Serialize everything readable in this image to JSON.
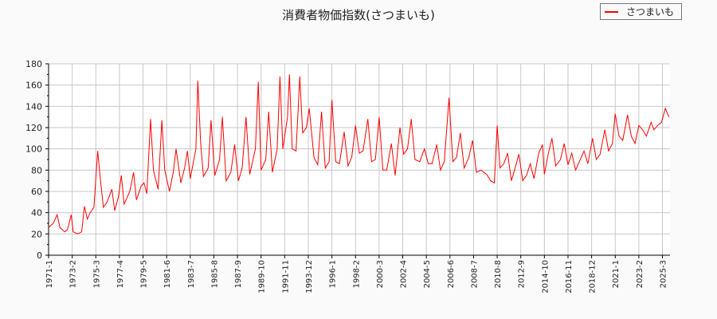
{
  "chart_data": {
    "type": "line",
    "title": "消費者物価指数(さつまいも)",
    "xlabel": "",
    "ylabel": "",
    "ylim": [
      0,
      180
    ],
    "yticks": [
      0,
      20,
      40,
      60,
      80,
      100,
      120,
      140,
      160,
      180
    ],
    "grid": true,
    "legend_position": "top-right",
    "x_tick_labels": [
      "1971-1",
      "1973-2",
      "1975-3",
      "1977-4",
      "1979-5",
      "1981-6",
      "1983-7",
      "1985-8",
      "1987-9",
      "1989-10",
      "1991-11",
      "1993-12",
      "1996-1",
      "1998-2",
      "2000-3",
      "2002-4",
      "2004-5",
      "2006-6",
      "2008-7",
      "2010-8",
      "2012-9",
      "2014-10",
      "2016-11",
      "2018-12",
      "2021-1",
      "2023-2",
      "2025-3"
    ],
    "series": [
      {
        "name": "さつまいも",
        "color": "#ff0000",
        "points": [
          [
            "1971-1",
            26
          ],
          [
            "1971-6",
            30
          ],
          [
            "1971-10",
            38
          ],
          [
            "1972-1",
            26
          ],
          [
            "1972-6",
            22
          ],
          [
            "1972-9",
            24
          ],
          [
            "1973-1",
            38
          ],
          [
            "1973-3",
            22
          ],
          [
            "1973-8",
            20
          ],
          [
            "1973-12",
            22
          ],
          [
            "1974-3",
            46
          ],
          [
            "1974-6",
            34
          ],
          [
            "1974-9",
            40
          ],
          [
            "1975-1",
            45
          ],
          [
            "1975-5",
            98
          ],
          [
            "1975-8",
            70
          ],
          [
            "1975-11",
            45
          ],
          [
            "1976-3",
            50
          ],
          [
            "1976-8",
            62
          ],
          [
            "1976-11",
            42
          ],
          [
            "1977-3",
            55
          ],
          [
            "1977-6",
            75
          ],
          [
            "1977-9",
            48
          ],
          [
            "1978-3",
            60
          ],
          [
            "1978-7",
            78
          ],
          [
            "1978-10",
            52
          ],
          [
            "1979-3",
            65
          ],
          [
            "1979-6",
            68
          ],
          [
            "1979-9",
            58
          ],
          [
            "1980-1",
            128
          ],
          [
            "1980-4",
            80
          ],
          [
            "1980-9",
            62
          ],
          [
            "1981-1",
            127
          ],
          [
            "1981-4",
            80
          ],
          [
            "1981-9",
            60
          ],
          [
            "1982-1",
            78
          ],
          [
            "1982-4",
            100
          ],
          [
            "1982-9",
            68
          ],
          [
            "1983-1",
            82
          ],
          [
            "1983-4",
            98
          ],
          [
            "1983-7",
            72
          ],
          [
            "1984-1",
            100
          ],
          [
            "1984-3",
            164
          ],
          [
            "1984-6",
            105
          ],
          [
            "1984-9",
            74
          ],
          [
            "1985-2",
            82
          ],
          [
            "1985-5",
            127
          ],
          [
            "1985-9",
            75
          ],
          [
            "1986-2",
            90
          ],
          [
            "1986-5",
            130
          ],
          [
            "1986-9",
            70
          ],
          [
            "1987-2",
            78
          ],
          [
            "1987-6",
            104
          ],
          [
            "1987-10",
            70
          ],
          [
            "1988-2",
            82
          ],
          [
            "1988-6",
            130
          ],
          [
            "1988-10",
            76
          ],
          [
            "1989-4",
            100
          ],
          [
            "1989-7",
            163
          ],
          [
            "1989-10",
            80
          ],
          [
            "1990-3",
            90
          ],
          [
            "1990-6",
            135
          ],
          [
            "1990-10",
            78
          ],
          [
            "1991-3",
            100
          ],
          [
            "1991-6",
            168
          ],
          [
            "1991-9",
            100
          ],
          [
            "1992-2",
            130
          ],
          [
            "1992-4",
            170
          ],
          [
            "1992-7",
            100
          ],
          [
            "1992-11",
            98
          ],
          [
            "1993-3",
            168
          ],
          [
            "1993-6",
            115
          ],
          [
            "1993-10",
            120
          ],
          [
            "1994-1",
            138
          ],
          [
            "1994-6",
            92
          ],
          [
            "1994-10",
            85
          ],
          [
            "1995-2",
            135
          ],
          [
            "1995-6",
            82
          ],
          [
            "1995-10",
            88
          ],
          [
            "1996-1",
            146
          ],
          [
            "1996-5",
            88
          ],
          [
            "1996-9",
            86
          ],
          [
            "1997-2",
            116
          ],
          [
            "1997-6",
            84
          ],
          [
            "1997-10",
            92
          ],
          [
            "1998-2",
            122
          ],
          [
            "1998-6",
            96
          ],
          [
            "1998-10",
            98
          ],
          [
            "1999-3",
            128
          ],
          [
            "1999-7",
            88
          ],
          [
            "1999-11",
            90
          ],
          [
            "2000-3",
            130
          ],
          [
            "2000-7",
            80
          ],
          [
            "2000-11",
            80
          ],
          [
            "2001-4",
            105
          ],
          [
            "2001-8",
            75
          ],
          [
            "2002-1",
            120
          ],
          [
            "2002-5",
            95
          ],
          [
            "2002-9",
            100
          ],
          [
            "2003-1",
            128
          ],
          [
            "2003-5",
            90
          ],
          [
            "2003-10",
            88
          ],
          [
            "2004-3",
            100
          ],
          [
            "2004-7",
            86
          ],
          [
            "2004-11",
            86
          ],
          [
            "2005-4",
            104
          ],
          [
            "2005-8",
            80
          ],
          [
            "2005-12",
            88
          ],
          [
            "2006-5",
            148
          ],
          [
            "2006-9",
            88
          ],
          [
            "2007-1",
            92
          ],
          [
            "2007-5",
            115
          ],
          [
            "2007-9",
            82
          ],
          [
            "2008-2",
            92
          ],
          [
            "2008-6",
            108
          ],
          [
            "2008-10",
            78
          ],
          [
            "2009-3",
            80
          ],
          [
            "2009-9",
            76
          ],
          [
            "2010-1",
            70
          ],
          [
            "2010-5",
            68
          ],
          [
            "2010-8",
            122
          ],
          [
            "2010-11",
            82
          ],
          [
            "2011-3",
            86
          ],
          [
            "2011-7",
            96
          ],
          [
            "2011-11",
            70
          ],
          [
            "2012-3",
            82
          ],
          [
            "2012-7",
            95
          ],
          [
            "2012-11",
            70
          ],
          [
            "2013-3",
            75
          ],
          [
            "2013-7",
            86
          ],
          [
            "2013-11",
            72
          ],
          [
            "2014-4",
            96
          ],
          [
            "2014-8",
            104
          ],
          [
            "2014-10",
            76
          ],
          [
            "2015-2",
            95
          ],
          [
            "2015-6",
            110
          ],
          [
            "2015-10",
            84
          ],
          [
            "2016-3",
            90
          ],
          [
            "2016-7",
            105
          ],
          [
            "2016-11",
            85
          ],
          [
            "2017-3",
            96
          ],
          [
            "2017-7",
            80
          ],
          [
            "2017-11",
            88
          ],
          [
            "2018-4",
            98
          ],
          [
            "2018-8",
            86
          ],
          [
            "2019-1",
            110
          ],
          [
            "2019-5",
            90
          ],
          [
            "2019-9",
            95
          ],
          [
            "2020-2",
            118
          ],
          [
            "2020-6",
            98
          ],
          [
            "2020-10",
            105
          ],
          [
            "2021-1",
            133
          ],
          [
            "2021-5",
            112
          ],
          [
            "2021-9",
            108
          ],
          [
            "2022-2",
            132
          ],
          [
            "2022-6",
            112
          ],
          [
            "2022-10",
            105
          ],
          [
            "2023-2",
            122
          ],
          [
            "2023-6",
            118
          ],
          [
            "2023-10",
            112
          ],
          [
            "2024-3",
            125
          ],
          [
            "2024-6",
            118
          ],
          [
            "2024-10",
            122
          ],
          [
            "2025-2",
            125
          ],
          [
            "2025-6",
            138
          ],
          [
            "2025-10",
            130
          ]
        ]
      }
    ]
  },
  "title": "消費者物価指数(さつまいも)",
  "legend": {
    "label": "さつまいも"
  }
}
